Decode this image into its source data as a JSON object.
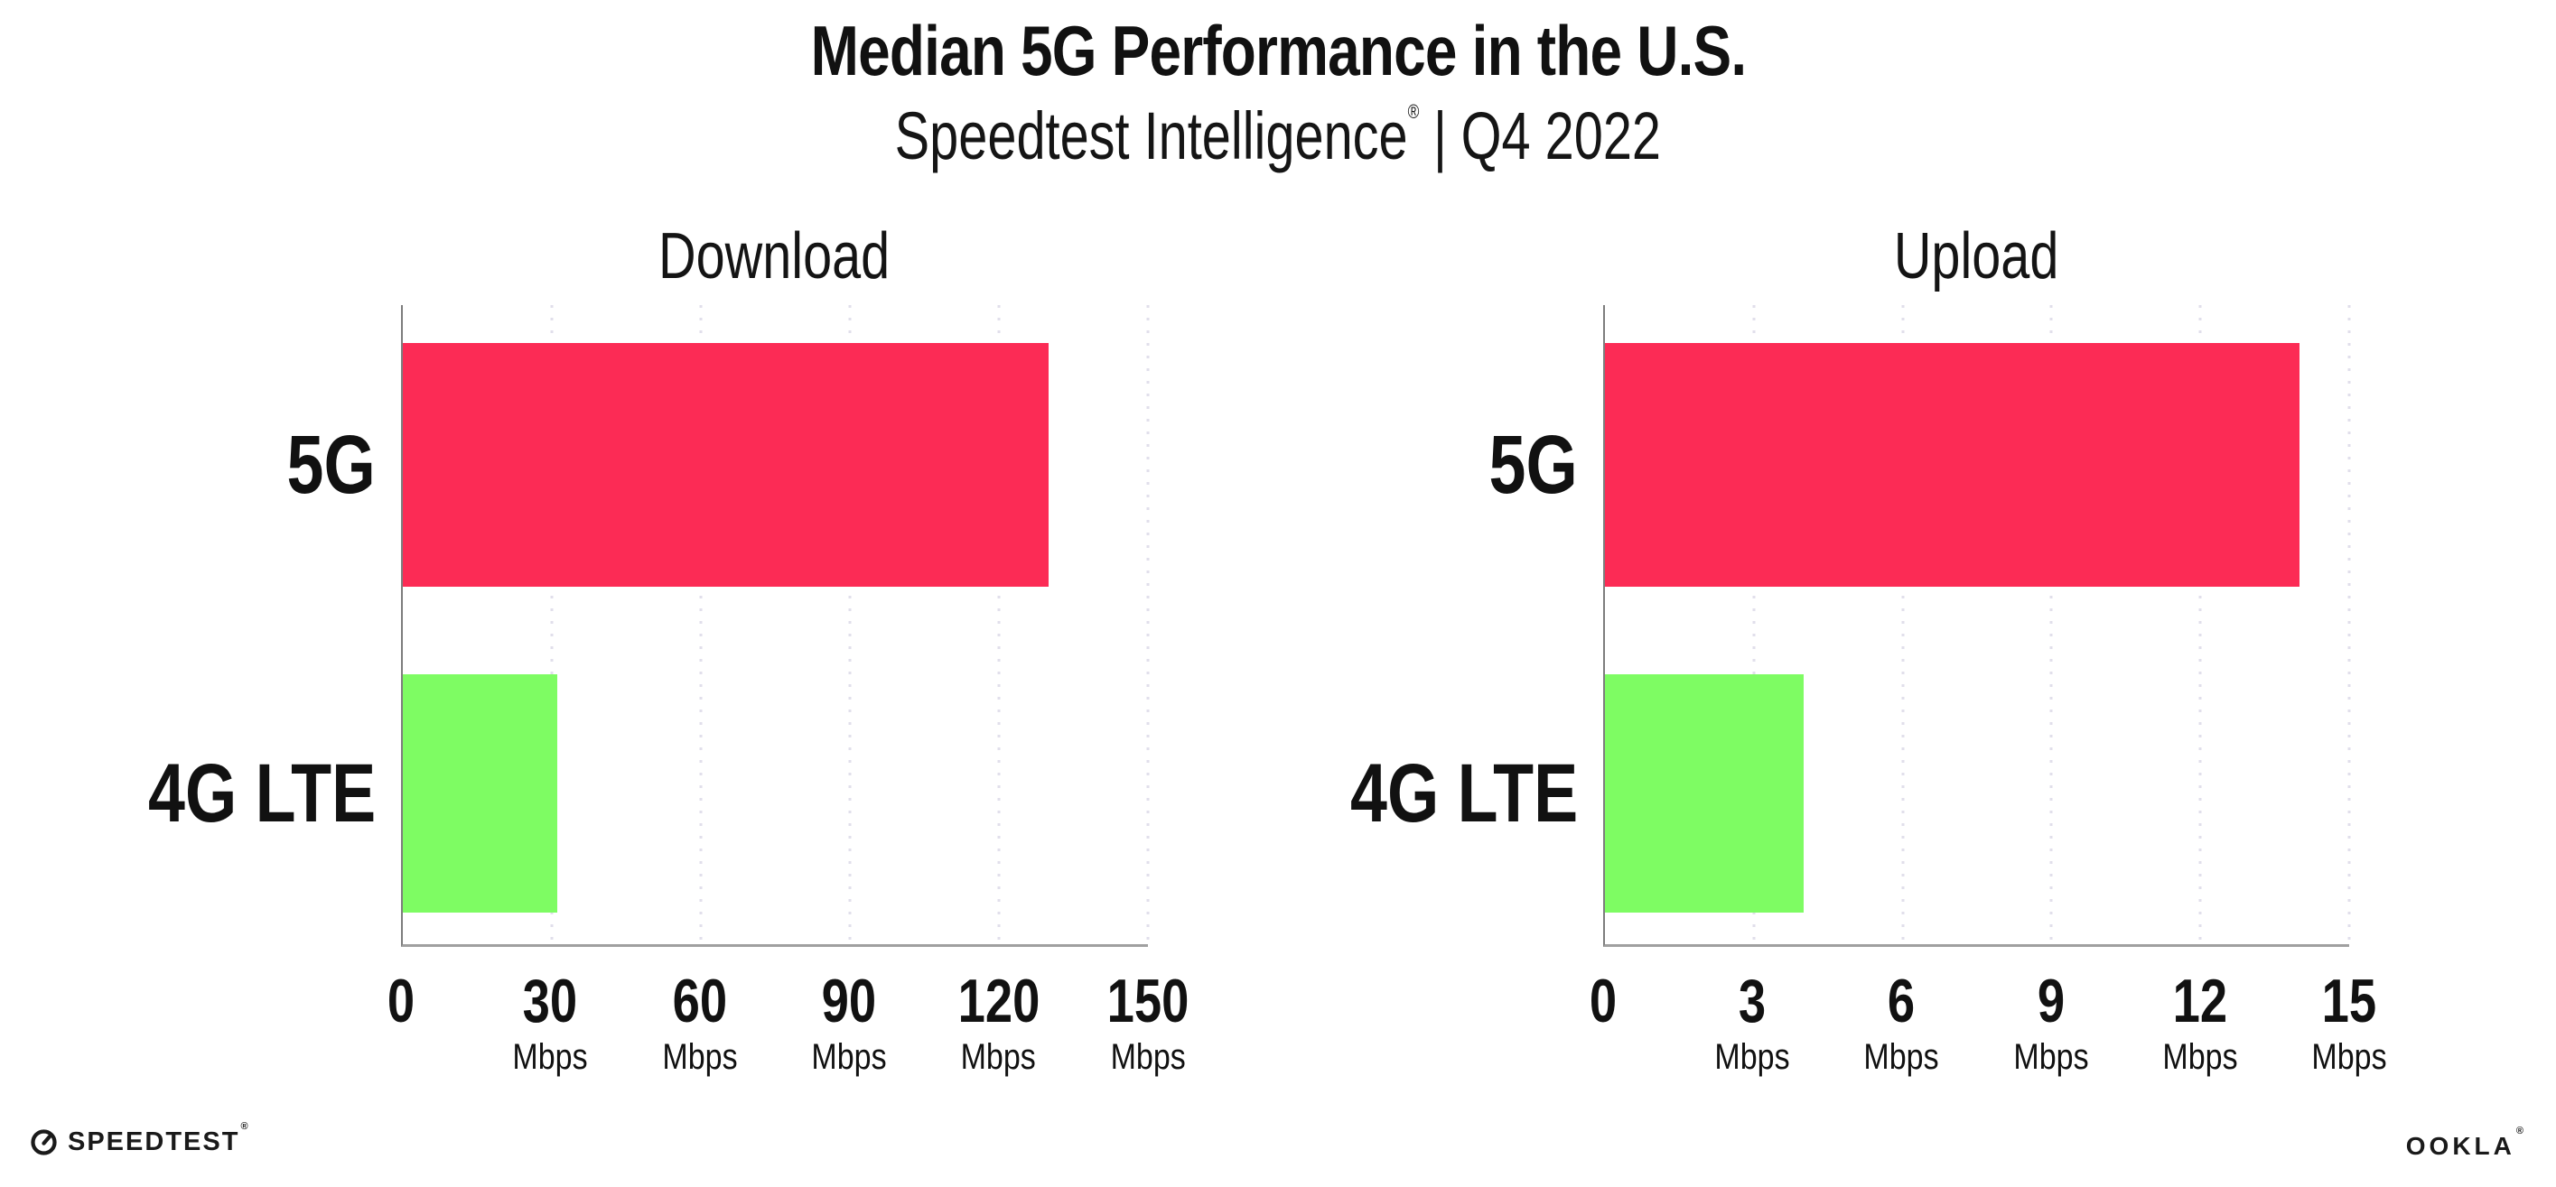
{
  "header": {
    "title": "Median 5G Performance in the U.S.",
    "subtitle_brand": "Speedtest Intelligence",
    "subtitle_reg": "®",
    "subtitle_divider": "|",
    "subtitle_period": "Q4 2022"
  },
  "chart_data": [
    {
      "type": "bar",
      "orientation": "horizontal",
      "title": "Download",
      "categories": [
        "5G",
        "4G LTE"
      ],
      "values": [
        130,
        31
      ],
      "unit": "Mbps",
      "xlim": [
        0,
        150
      ],
      "xticks": [
        0,
        30,
        60,
        90,
        120,
        150
      ],
      "bar_colors": [
        "#fc2b55",
        "#7efc63"
      ],
      "grid": "vertical dotted gridlines at each tick",
      "legend": "none"
    },
    {
      "type": "bar",
      "orientation": "horizontal",
      "title": "Upload",
      "categories": [
        "5G",
        "4G LTE"
      ],
      "values": [
        14,
        4
      ],
      "unit": "Mbps",
      "xlim": [
        0,
        15
      ],
      "xticks": [
        0,
        3,
        6,
        9,
        12,
        15
      ],
      "bar_colors": [
        "#fc2b55",
        "#7efc63"
      ],
      "grid": "vertical dotted gridlines at each tick",
      "legend": "none"
    }
  ],
  "colors": {
    "bar_5g": "#fc2b55",
    "bar_4g_lte": "#7efc63",
    "gridline": "#e1dfeb",
    "axis": "#a0a0a0",
    "text": "#111111",
    "background": "#ffffff"
  },
  "footer": {
    "speedtest_label": "SPEEDTEST",
    "speedtest_reg": "®",
    "ookla_label": "OOKLA",
    "ookla_reg": "®"
  }
}
